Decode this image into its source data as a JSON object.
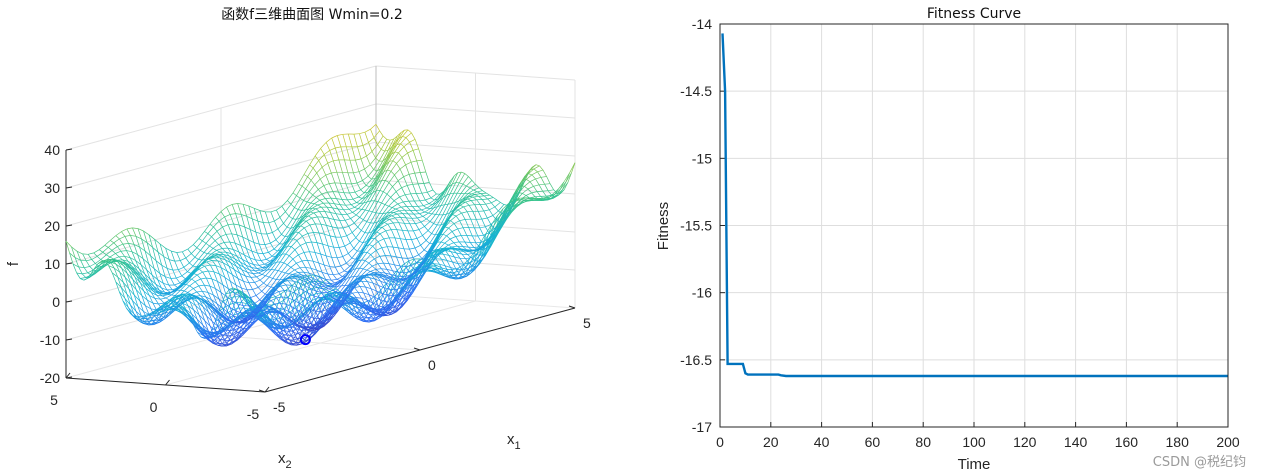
{
  "watermark": "CSDN @税纪钧",
  "chart_data": [
    {
      "type": "surface",
      "title": "函数f三维曲面图 Wmin=0.2",
      "zlabel": "f",
      "xlabel": "x",
      "xlabel_sub": "1",
      "ylabel": "x",
      "ylabel_sub": "2",
      "z_ticks": [
        "40",
        "30",
        "20",
        "10",
        "0",
        "-10",
        "-20"
      ],
      "x1_ticks": [
        "5",
        "0",
        "-5"
      ],
      "x2_ticks": [
        "5",
        "0",
        "-5"
      ],
      "zlim": [
        -20,
        40
      ],
      "x1_range": [
        -5,
        5
      ],
      "x2_range": [
        -5,
        5
      ],
      "colormap": [
        "#3e26a8",
        "#2f6ff5",
        "#16b3d6",
        "#34c38f",
        "#a8c93a",
        "#f9c234",
        "#f9fb15"
      ],
      "min_marker": {
        "x1": -1.0,
        "x2": -0.8,
        "f": -16.6,
        "color": "#0000ff"
      }
    },
    {
      "type": "line",
      "title": "Fitness Curve",
      "xlabel": "Time",
      "ylabel": "Fitness",
      "xlim": [
        0,
        200
      ],
      "ylim": [
        -17,
        -14
      ],
      "xticks": [
        0,
        20,
        40,
        60,
        80,
        100,
        120,
        140,
        160,
        180,
        200
      ],
      "yticks": [
        -14,
        -14.5,
        -15,
        -15.5,
        -16,
        -16.5,
        -17
      ],
      "grid": true,
      "color": "#0072bd",
      "series": [
        {
          "x": [
            1,
            2,
            3,
            4,
            5,
            6,
            7,
            8,
            9,
            10,
            11,
            12,
            13,
            15,
            18,
            21,
            23,
            24,
            26,
            28,
            30,
            40,
            60,
            80,
            100,
            120,
            140,
            160,
            180,
            200
          ],
          "values": [
            -14.07,
            -14.5,
            -16.53,
            -16.53,
            -16.53,
            -16.53,
            -16.53,
            -16.53,
            -16.53,
            -16.6,
            -16.61,
            -16.61,
            -16.61,
            -16.61,
            -16.61,
            -16.61,
            -16.61,
            -16.615,
            -16.62,
            -16.62,
            -16.62,
            -16.62,
            -16.62,
            -16.62,
            -16.62,
            -16.62,
            -16.62,
            -16.62,
            -16.62,
            -16.62
          ]
        }
      ]
    }
  ]
}
